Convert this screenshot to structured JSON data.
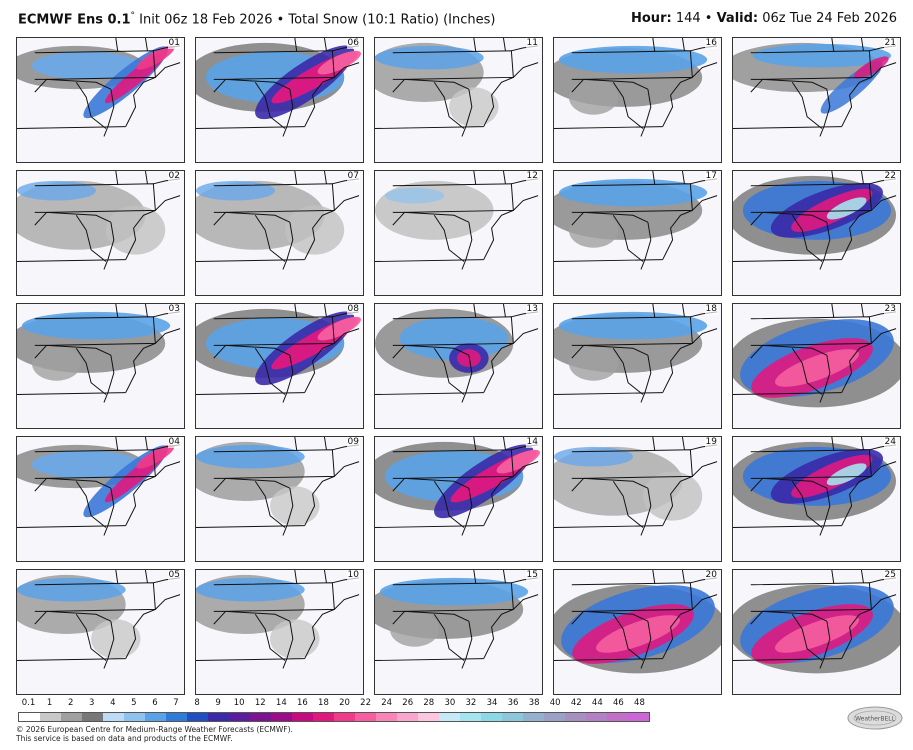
{
  "header": {
    "product": "ECMWF Ens 0.1",
    "degree": "°",
    "info": " Init 06z 18 Feb 2026 • Total Snow (10:1 Ratio) (Inches)",
    "hour_label": "Hour:",
    "hour_value": " 144 • ",
    "valid_label": "Valid:",
    "valid_value": " 06z Tue 24 Feb 2026"
  },
  "members": [
    {
      "id": "01",
      "pattern": "ne-band"
    },
    {
      "id": "06",
      "pattern": "ne-band-strong"
    },
    {
      "id": "11",
      "pattern": "light-west"
    },
    {
      "id": "16",
      "pattern": "north-blue"
    },
    {
      "id": "21",
      "pattern": "north-blue-coast"
    },
    {
      "id": "02",
      "pattern": "light"
    },
    {
      "id": "07",
      "pattern": "light"
    },
    {
      "id": "12",
      "pattern": "very-light"
    },
    {
      "id": "17",
      "pattern": "north-blue"
    },
    {
      "id": "22",
      "pattern": "heavy-mid"
    },
    {
      "id": "03",
      "pattern": "north-blue"
    },
    {
      "id": "08",
      "pattern": "ne-band-strong"
    },
    {
      "id": "13",
      "pattern": "mid-spot"
    },
    {
      "id": "18",
      "pattern": "north-blue"
    },
    {
      "id": "23",
      "pattern": "heavy-south"
    },
    {
      "id": "04",
      "pattern": "ne-band"
    },
    {
      "id": "09",
      "pattern": "light-west"
    },
    {
      "id": "14",
      "pattern": "ne-band-strong"
    },
    {
      "id": "19",
      "pattern": "light"
    },
    {
      "id": "24",
      "pattern": "heavy-mid"
    },
    {
      "id": "05",
      "pattern": "light-west"
    },
    {
      "id": "10",
      "pattern": "light-west"
    },
    {
      "id": "15",
      "pattern": "north-blue"
    },
    {
      "id": "20",
      "pattern": "heavy-south"
    },
    {
      "id": "25",
      "pattern": "heavy-south"
    }
  ],
  "colorbar": {
    "ticks": [
      "0.1",
      "1",
      "2",
      "3",
      "4",
      "5",
      "6",
      "7",
      "8",
      "9",
      "10",
      "12",
      "14",
      "16",
      "18",
      "20",
      "22",
      "24",
      "26",
      "28",
      "30",
      "32",
      "34",
      "36",
      "38",
      "40",
      "42",
      "44",
      "46",
      "48"
    ],
    "colors": [
      "#ffffff",
      "#c8c8c8",
      "#a0a0a0",
      "#787878",
      "#bcdcf5",
      "#8ec3f0",
      "#5aa2e8",
      "#2f7bd6",
      "#1f4fc0",
      "#3a2aa8",
      "#5a1d9c",
      "#7a1490",
      "#9a0d88",
      "#c40c80",
      "#e0187e",
      "#f03a8a",
      "#f55fa0",
      "#f884b8",
      "#f9a6cc",
      "#fbc6de",
      "#c6eaf5",
      "#a3e4ef",
      "#8bd9e6",
      "#8cc8dc",
      "#94b2cf",
      "#9ba1c6",
      "#a690c2",
      "#b380c4",
      "#c36fca",
      "#cc66d6"
    ]
  },
  "credit": {
    "line1": "© 2026 European Centre for Medium-Range Weather Forecasts (ECMWF).",
    "line2": "This service is based on data and products of the ECMWF."
  },
  "logo_text": "WeatherBELL"
}
